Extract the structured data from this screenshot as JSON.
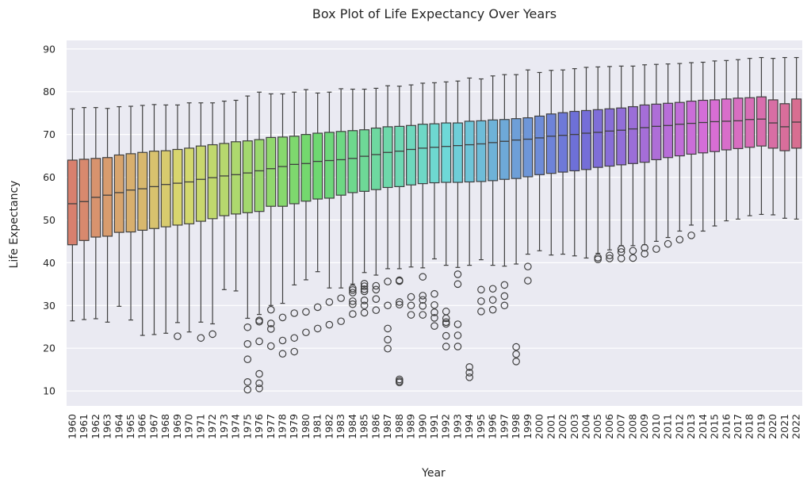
{
  "chart_data": {
    "type": "box",
    "title": "Box Plot of Life Expectancy Over Years",
    "xlabel": "Year",
    "ylabel": "Life Expectancy",
    "ylim": [
      6.5,
      92
    ],
    "yticks": [
      10,
      20,
      30,
      40,
      50,
      60,
      70,
      80,
      90
    ],
    "grid": true,
    "legend": "none",
    "categories": [
      "1960",
      "1961",
      "1962",
      "1963",
      "1964",
      "1965",
      "1966",
      "1967",
      "1968",
      "1969",
      "1970",
      "1971",
      "1972",
      "1973",
      "1974",
      "1975",
      "1976",
      "1977",
      "1978",
      "1979",
      "1980",
      "1981",
      "1982",
      "1983",
      "1984",
      "1985",
      "1986",
      "1987",
      "1988",
      "1989",
      "1990",
      "1991",
      "1992",
      "1993",
      "1994",
      "1995",
      "1996",
      "1997",
      "1998",
      "1999",
      "2000",
      "2001",
      "2002",
      "2003",
      "2004",
      "2005",
      "2006",
      "2007",
      "2008",
      "2009",
      "2010",
      "2011",
      "2012",
      "2013",
      "2014",
      "2015",
      "2016",
      "2017",
      "2018",
      "2019",
      "2020",
      "2021",
      "2022"
    ],
    "boxes": [
      {
        "min": 26.4,
        "q1": 44.2,
        "median": 53.8,
        "q3": 64.0,
        "max": 76.0,
        "outliers": []
      },
      {
        "min": 26.7,
        "q1": 45.2,
        "median": 54.3,
        "q3": 64.2,
        "max": 76.3,
        "outliers": []
      },
      {
        "min": 26.9,
        "q1": 46.0,
        "median": 55.3,
        "q3": 64.4,
        "max": 76.3,
        "outliers": []
      },
      {
        "min": 26.1,
        "q1": 46.2,
        "median": 55.8,
        "q3": 64.6,
        "max": 76.1,
        "outliers": []
      },
      {
        "min": 29.8,
        "q1": 47.1,
        "median": 56.4,
        "q3": 65.2,
        "max": 76.5,
        "outliers": []
      },
      {
        "min": 26.6,
        "q1": 47.2,
        "median": 57.0,
        "q3": 65.5,
        "max": 76.6,
        "outliers": []
      },
      {
        "min": 23.0,
        "q1": 47.6,
        "median": 57.3,
        "q3": 65.8,
        "max": 76.8,
        "outliers": []
      },
      {
        "min": 23.2,
        "q1": 48.0,
        "median": 57.8,
        "q3": 66.1,
        "max": 77.0,
        "outliers": []
      },
      {
        "min": 23.5,
        "q1": 48.4,
        "median": 58.3,
        "q3": 66.2,
        "max": 76.9,
        "outliers": []
      },
      {
        "min": 26.0,
        "q1": 48.8,
        "median": 58.6,
        "q3": 66.5,
        "max": 76.9,
        "outliers": [
          22.8
        ]
      },
      {
        "min": 23.8,
        "q1": 49.1,
        "median": 58.9,
        "q3": 66.8,
        "max": 77.4,
        "outliers": []
      },
      {
        "min": 26.1,
        "q1": 49.7,
        "median": 59.5,
        "q3": 67.3,
        "max": 77.4,
        "outliers": [
          22.4
        ]
      },
      {
        "min": 25.7,
        "q1": 50.3,
        "median": 59.9,
        "q3": 67.6,
        "max": 77.4,
        "outliers": [
          23.3
        ]
      },
      {
        "min": 33.7,
        "q1": 51.0,
        "median": 60.3,
        "q3": 67.9,
        "max": 77.8,
        "outliers": []
      },
      {
        "min": 33.4,
        "q1": 51.4,
        "median": 60.6,
        "q3": 68.3,
        "max": 78.0,
        "outliers": []
      },
      {
        "min": 27.0,
        "q1": 51.7,
        "median": 61.0,
        "q3": 68.5,
        "max": 79.0,
        "outliers": [
          24.9,
          21.0,
          17.4,
          12.1,
          10.3
        ]
      },
      {
        "min": 27.9,
        "q1": 52.0,
        "median": 61.5,
        "q3": 68.8,
        "max": 79.9,
        "outliers": [
          26.5,
          26.2,
          21.6,
          14.0,
          11.8,
          10.6
        ]
      },
      {
        "min": 30.0,
        "q1": 53.2,
        "median": 62.0,
        "q3": 69.3,
        "max": 79.5,
        "outliers": [
          29.0,
          25.8,
          24.5,
          20.5
        ]
      },
      {
        "min": 30.5,
        "q1": 53.2,
        "median": 62.5,
        "q3": 69.4,
        "max": 79.5,
        "outliers": [
          27.2,
          21.8,
          18.7
        ]
      },
      {
        "min": 34.8,
        "q1": 53.8,
        "median": 63.0,
        "q3": 69.6,
        "max": 79.9,
        "outliers": [
          28.2,
          22.4,
          19.2
        ]
      },
      {
        "min": 36.0,
        "q1": 54.4,
        "median": 63.2,
        "q3": 70.0,
        "max": 80.5,
        "outliers": [
          28.5,
          23.7
        ]
      },
      {
        "min": 37.9,
        "q1": 54.9,
        "median": 63.7,
        "q3": 70.3,
        "max": 79.7,
        "outliers": [
          29.6,
          24.6
        ]
      },
      {
        "min": 34.1,
        "q1": 55.1,
        "median": 63.9,
        "q3": 70.5,
        "max": 79.9,
        "outliers": [
          30.8,
          25.5
        ]
      },
      {
        "min": 34.1,
        "q1": 55.8,
        "median": 64.1,
        "q3": 70.7,
        "max": 80.7,
        "outliers": [
          31.7,
          26.3
        ]
      },
      {
        "min": 35.0,
        "q1": 56.4,
        "median": 64.4,
        "q3": 70.9,
        "max": 80.6,
        "outliers": [
          34.0,
          33.6,
          33.0,
          31.0,
          30.3,
          28.0
        ]
      },
      {
        "min": 37.7,
        "q1": 56.7,
        "median": 64.9,
        "q3": 71.1,
        "max": 80.6,
        "outliers": [
          35.1,
          34.5,
          33.8,
          33.3,
          31.2,
          30.0,
          28.3
        ]
      },
      {
        "min": 37.1,
        "q1": 57.1,
        "median": 65.3,
        "q3": 71.5,
        "max": 80.8,
        "outliers": [
          34.6,
          33.7,
          31.5,
          28.9
        ]
      },
      {
        "min": 38.6,
        "q1": 57.6,
        "median": 65.8,
        "q3": 71.8,
        "max": 81.4,
        "outliers": [
          35.6,
          30.0,
          24.6,
          22.0,
          19.9
        ]
      },
      {
        "min": 38.6,
        "q1": 57.8,
        "median": 66.1,
        "q3": 71.9,
        "max": 81.3,
        "outliers": [
          35.9,
          35.7,
          30.8,
          30.2,
          12.7,
          12.3,
          12.0
        ]
      },
      {
        "min": 39.0,
        "q1": 58.2,
        "median": 66.5,
        "q3": 72.1,
        "max": 81.6,
        "outliers": [
          32.0,
          30.0,
          27.8
        ]
      },
      {
        "min": 38.8,
        "q1": 58.5,
        "median": 66.8,
        "q3": 72.4,
        "max": 82.0,
        "outliers": [
          36.7,
          32.3,
          31.3,
          29.9,
          27.8
        ]
      },
      {
        "min": 40.9,
        "q1": 58.7,
        "median": 67.0,
        "q3": 72.5,
        "max": 82.1,
        "outliers": [
          32.7,
          30.1,
          28.4,
          27.1,
          25.2
        ]
      },
      {
        "min": 39.4,
        "q1": 58.8,
        "median": 67.2,
        "q3": 72.7,
        "max": 82.3,
        "outliers": [
          28.6,
          27.0,
          26.1,
          25.7,
          22.9,
          20.4
        ]
      },
      {
        "min": 38.9,
        "q1": 58.8,
        "median": 67.4,
        "q3": 72.7,
        "max": 82.5,
        "outliers": [
          37.3,
          35.0,
          25.6,
          23.0,
          20.4
        ]
      },
      {
        "min": 39.4,
        "q1": 58.9,
        "median": 67.6,
        "q3": 73.1,
        "max": 83.2,
        "outliers": [
          15.6,
          14.3,
          13.2
        ]
      },
      {
        "min": 40.7,
        "q1": 59.0,
        "median": 67.8,
        "q3": 73.2,
        "max": 83.0,
        "outliers": [
          33.7,
          31.0,
          28.6
        ]
      },
      {
        "min": 39.4,
        "q1": 59.2,
        "median": 68.1,
        "q3": 73.4,
        "max": 83.7,
        "outliers": [
          33.9,
          31.3,
          29.0
        ]
      },
      {
        "min": 39.2,
        "q1": 59.5,
        "median": 68.4,
        "q3": 73.5,
        "max": 84.0,
        "outliers": [
          34.8,
          32.2,
          30.0
        ]
      },
      {
        "min": 39.7,
        "q1": 59.7,
        "median": 68.7,
        "q3": 73.7,
        "max": 84.0,
        "outliers": [
          20.3,
          18.6,
          16.9
        ]
      },
      {
        "min": 42.0,
        "q1": 60.1,
        "median": 68.9,
        "q3": 73.9,
        "max": 85.1,
        "outliers": [
          39.1,
          35.8
        ]
      },
      {
        "min": 42.8,
        "q1": 60.6,
        "median": 69.2,
        "q3": 74.3,
        "max": 84.5,
        "outliers": []
      },
      {
        "min": 41.8,
        "q1": 60.9,
        "median": 69.6,
        "q3": 74.8,
        "max": 85.0,
        "outliers": []
      },
      {
        "min": 42.0,
        "q1": 61.2,
        "median": 69.8,
        "q3": 75.1,
        "max": 85.1,
        "outliers": []
      },
      {
        "min": 41.6,
        "q1": 61.5,
        "median": 70.0,
        "q3": 75.4,
        "max": 85.4,
        "outliers": []
      },
      {
        "min": 41.1,
        "q1": 61.8,
        "median": 70.3,
        "q3": 75.6,
        "max": 85.7,
        "outliers": []
      },
      {
        "min": 42.2,
        "q1": 62.3,
        "median": 70.5,
        "q3": 75.8,
        "max": 85.8,
        "outliers": [
          41.2,
          40.8
        ]
      },
      {
        "min": 43.0,
        "q1": 62.6,
        "median": 70.8,
        "q3": 76.0,
        "max": 85.9,
        "outliers": [
          41.7,
          41.0
        ]
      },
      {
        "min": 44.0,
        "q1": 62.9,
        "median": 71.0,
        "q3": 76.2,
        "max": 86.0,
        "outliers": [
          43.2,
          42.5,
          41.0
        ]
      },
      {
        "min": 44.0,
        "q1": 63.2,
        "median": 71.3,
        "q3": 76.5,
        "max": 86.0,
        "outliers": [
          42.8,
          41.1
        ]
      },
      {
        "min": 44.2,
        "q1": 63.5,
        "median": 71.6,
        "q3": 76.9,
        "max": 86.3,
        "outliers": [
          43.5,
          42.1
        ]
      },
      {
        "min": 45.0,
        "q1": 64.1,
        "median": 71.9,
        "q3": 77.1,
        "max": 86.4,
        "outliers": [
          43.2
        ]
      },
      {
        "min": 45.9,
        "q1": 64.6,
        "median": 72.1,
        "q3": 77.3,
        "max": 86.5,
        "outliers": [
          44.4
        ]
      },
      {
        "min": 47.4,
        "q1": 65.0,
        "median": 72.4,
        "q3": 77.5,
        "max": 86.6,
        "outliers": [
          45.4
        ]
      },
      {
        "min": 48.8,
        "q1": 65.4,
        "median": 72.6,
        "q3": 77.8,
        "max": 86.8,
        "outliers": [
          46.4
        ]
      },
      {
        "min": 47.4,
        "q1": 65.7,
        "median": 72.8,
        "q3": 78.0,
        "max": 86.9,
        "outliers": []
      },
      {
        "min": 48.6,
        "q1": 66.0,
        "median": 73.0,
        "q3": 78.1,
        "max": 87.2,
        "outliers": []
      },
      {
        "min": 49.8,
        "q1": 66.4,
        "median": 73.1,
        "q3": 78.3,
        "max": 87.3,
        "outliers": []
      },
      {
        "min": 50.2,
        "q1": 66.7,
        "median": 73.2,
        "q3": 78.5,
        "max": 87.5,
        "outliers": []
      },
      {
        "min": 51.0,
        "q1": 67.0,
        "median": 73.5,
        "q3": 78.6,
        "max": 87.8,
        "outliers": []
      },
      {
        "min": 51.3,
        "q1": 67.3,
        "median": 73.6,
        "q3": 78.8,
        "max": 88.0,
        "outliers": []
      },
      {
        "min": 51.2,
        "q1": 66.8,
        "median": 72.7,
        "q3": 78.1,
        "max": 87.8,
        "outliers": []
      },
      {
        "min": 50.4,
        "q1": 66.2,
        "median": 71.8,
        "q3": 77.2,
        "max": 88.0,
        "outliers": []
      },
      {
        "min": 50.2,
        "q1": 66.8,
        "median": 72.9,
        "q3": 78.3,
        "max": 88.0,
        "outliers": []
      }
    ]
  }
}
